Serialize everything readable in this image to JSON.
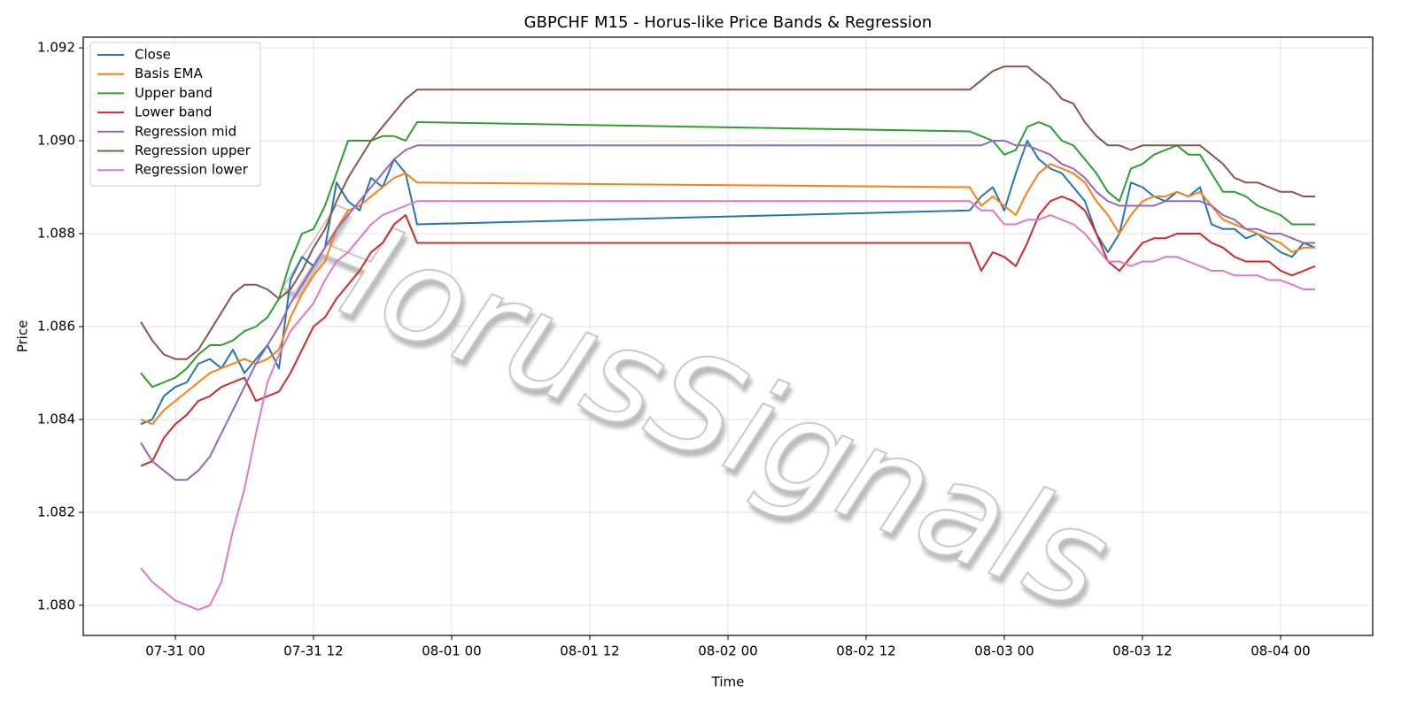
{
  "chart_data": {
    "type": "line",
    "title": "GBPCHF M15 - Horus-like Price Bands & Regression",
    "x_label": "Time",
    "y_label": "Price",
    "watermark": "HorusSignals",
    "grid": true,
    "legend": "upper left",
    "xlim": [
      "07-30 16",
      "08-04 08"
    ],
    "xticks": [
      "07-31 00",
      "07-31 12",
      "08-01 00",
      "08-01 12",
      "08-02 00",
      "08-02 12",
      "08-03 00",
      "08-03 12",
      "08-04 00"
    ],
    "ylim": [
      1.07935,
      1.09223
    ],
    "yticks": [
      {
        "value": 1.08,
        "label": "1.080"
      },
      {
        "value": 1.082,
        "label": "1.082"
      },
      {
        "value": 1.084,
        "label": "1.084"
      },
      {
        "value": 1.086,
        "label": "1.086"
      },
      {
        "value": 1.088,
        "label": "1.088"
      },
      {
        "value": 1.09,
        "label": "1.090"
      },
      {
        "value": 1.092,
        "label": "1.092"
      }
    ],
    "x": [
      "07-30 21",
      "07-30 22",
      "07-30 23",
      "07-31 00",
      "07-31 01",
      "07-31 02",
      "07-31 03",
      "07-31 04",
      "07-31 05",
      "07-31 06",
      "07-31 07",
      "07-31 08",
      "07-31 09",
      "07-31 10",
      "07-31 11",
      "07-31 12",
      "07-31 13",
      "07-31 14",
      "07-31 15",
      "07-31 16",
      "07-31 17",
      "07-31 18",
      "07-31 19",
      "07-31 20",
      "07-31 21",
      "08-02 21",
      "08-02 22",
      "08-02 23",
      "08-03 00",
      "08-03 01",
      "08-03 02",
      "08-03 03",
      "08-03 04",
      "08-03 05",
      "08-03 06",
      "08-03 07",
      "08-03 08",
      "08-03 09",
      "08-03 10",
      "08-03 11",
      "08-03 12",
      "08-03 13",
      "08-03 14",
      "08-03 15",
      "08-03 16",
      "08-03 17",
      "08-03 18",
      "08-03 19",
      "08-03 20",
      "08-03 21",
      "08-03 22",
      "08-03 23",
      "08-04 00",
      "08-04 01",
      "08-04 02",
      "08-04 03"
    ],
    "series": [
      {
        "name": "Close",
        "color": "#1f77b4",
        "values": [
          1.0839,
          1.084,
          1.0845,
          1.0847,
          1.0848,
          1.0852,
          1.0853,
          1.0851,
          1.0855,
          1.085,
          1.0853,
          1.0856,
          1.0851,
          1.087,
          1.0875,
          1.0873,
          1.0877,
          1.0891,
          1.0887,
          1.0885,
          1.0892,
          1.089,
          1.0896,
          1.0893,
          1.0882,
          1.0885,
          1.0888,
          1.089,
          1.0885,
          1.0893,
          1.09,
          1.0896,
          1.0894,
          1.0893,
          1.089,
          1.0887,
          1.088,
          1.0876,
          1.088,
          1.0891,
          1.089,
          1.0888,
          1.0887,
          1.0889,
          1.0888,
          1.089,
          1.0882,
          1.0881,
          1.0881,
          1.0879,
          1.088,
          1.0878,
          1.0876,
          1.0875,
          1.0878,
          1.0877
        ]
      },
      {
        "name": "Basis EMA",
        "color": "#ff7f0e",
        "values": [
          1.084,
          1.0839,
          1.0842,
          1.0844,
          1.0846,
          1.0848,
          1.085,
          1.0851,
          1.0852,
          1.0853,
          1.0852,
          1.0853,
          1.0855,
          1.0862,
          1.0867,
          1.0871,
          1.0874,
          1.0881,
          1.0885,
          1.0886,
          1.0888,
          1.089,
          1.0892,
          1.0893,
          1.0891,
          1.089,
          1.0886,
          1.0888,
          1.0886,
          1.0884,
          1.0889,
          1.0893,
          1.0895,
          1.0894,
          1.0893,
          1.0891,
          1.0887,
          1.0884,
          1.088,
          1.0884,
          1.0887,
          1.0888,
          1.0888,
          1.0889,
          1.0888,
          1.0889,
          1.0886,
          1.0883,
          1.0882,
          1.0881,
          1.088,
          1.0879,
          1.0878,
          1.0876,
          1.0877,
          1.0877
        ]
      },
      {
        "name": "Upper band",
        "color": "#2ca02c",
        "values": [
          1.085,
          1.0847,
          1.0848,
          1.0849,
          1.0851,
          1.0854,
          1.0856,
          1.0856,
          1.0857,
          1.0859,
          1.086,
          1.0862,
          1.0866,
          1.0874,
          1.088,
          1.0881,
          1.0886,
          1.0893,
          1.09,
          1.09,
          1.09,
          1.0901,
          1.0901,
          1.09,
          1.0904,
          1.0902,
          1.0901,
          1.09,
          1.0897,
          1.0898,
          1.0903,
          1.0904,
          1.0903,
          1.09,
          1.0899,
          1.0896,
          1.0893,
          1.0889,
          1.0887,
          1.0894,
          1.0895,
          1.0897,
          1.0898,
          1.0899,
          1.0897,
          1.0897,
          1.0893,
          1.0889,
          1.0889,
          1.0888,
          1.0886,
          1.0885,
          1.0884,
          1.0882,
          1.0882,
          1.0882
        ]
      },
      {
        "name": "Lower band",
        "color": "#d62728",
        "values": [
          1.083,
          1.0831,
          1.0836,
          1.0839,
          1.0841,
          1.0844,
          1.0845,
          1.0847,
          1.0848,
          1.0849,
          1.0844,
          1.0845,
          1.0846,
          1.085,
          1.0855,
          1.086,
          1.0862,
          1.0866,
          1.0869,
          1.0872,
          1.0876,
          1.0878,
          1.0882,
          1.0884,
          1.0878,
          1.0878,
          1.0872,
          1.0876,
          1.0875,
          1.0873,
          1.0878,
          1.0884,
          1.0887,
          1.0888,
          1.0887,
          1.0885,
          1.088,
          1.0874,
          1.0872,
          1.0875,
          1.0878,
          1.0879,
          1.0879,
          1.088,
          1.088,
          1.088,
          1.0878,
          1.0877,
          1.0875,
          1.0874,
          1.0874,
          1.0874,
          1.0872,
          1.0871,
          1.0872,
          1.0873
        ]
      },
      {
        "name": "Regression mid",
        "color": "#9467bd",
        "values": [
          1.0835,
          1.0831,
          1.0829,
          1.0827,
          1.0827,
          1.0829,
          1.0832,
          1.0837,
          1.0842,
          1.0847,
          1.0852,
          1.0856,
          1.086,
          1.0865,
          1.0869,
          1.0873,
          1.0877,
          1.0881,
          1.0884,
          1.0887,
          1.089,
          1.0893,
          1.0896,
          1.0898,
          1.0899,
          1.0899,
          1.0899,
          1.09,
          1.09,
          1.0899,
          1.0899,
          1.0898,
          1.0897,
          1.0895,
          1.0894,
          1.0892,
          1.0889,
          1.0887,
          1.0886,
          1.0886,
          1.0886,
          1.0886,
          1.0887,
          1.0887,
          1.0887,
          1.0887,
          1.0886,
          1.0884,
          1.0883,
          1.0881,
          1.0881,
          1.088,
          1.088,
          1.0879,
          1.0878,
          1.0878
        ]
      },
      {
        "name": "Regression upper",
        "color": "#8c564b",
        "values": [
          1.0861,
          1.0857,
          1.0854,
          1.0853,
          1.0853,
          1.0855,
          1.0859,
          1.0863,
          1.0867,
          1.0869,
          1.0869,
          1.0868,
          1.0866,
          1.0868,
          1.0872,
          1.0877,
          1.0881,
          1.0887,
          1.0892,
          1.0896,
          1.09,
          1.0903,
          1.0906,
          1.0909,
          1.0911,
          1.0911,
          1.0913,
          1.0915,
          1.0916,
          1.0916,
          1.0916,
          1.0914,
          1.0912,
          1.0909,
          1.0908,
          1.0904,
          1.0901,
          1.0899,
          1.0899,
          1.0898,
          1.0899,
          1.0899,
          1.0899,
          1.0899,
          1.0899,
          1.0899,
          1.0897,
          1.0895,
          1.0892,
          1.0891,
          1.0891,
          1.089,
          1.0889,
          1.0889,
          1.0888,
          1.0888
        ]
      },
      {
        "name": "Regression lower",
        "color": "#e377c2",
        "values": [
          1.0808,
          1.0805,
          1.0803,
          1.0801,
          1.08,
          1.0799,
          1.08,
          1.0805,
          1.0816,
          1.0825,
          1.0837,
          1.0848,
          1.0854,
          1.0859,
          1.0862,
          1.0865,
          1.087,
          1.0874,
          1.0876,
          1.0879,
          1.0882,
          1.0884,
          1.0885,
          1.0886,
          1.0887,
          1.0887,
          1.0885,
          1.0885,
          1.0882,
          1.0882,
          1.0883,
          1.0883,
          1.0884,
          1.0883,
          1.0882,
          1.088,
          1.0877,
          1.0874,
          1.0874,
          1.0873,
          1.0874,
          1.0874,
          1.0875,
          1.0875,
          1.0874,
          1.0873,
          1.0872,
          1.0872,
          1.0871,
          1.0871,
          1.0871,
          1.087,
          1.087,
          1.0869,
          1.0868,
          1.0868
        ]
      }
    ]
  }
}
